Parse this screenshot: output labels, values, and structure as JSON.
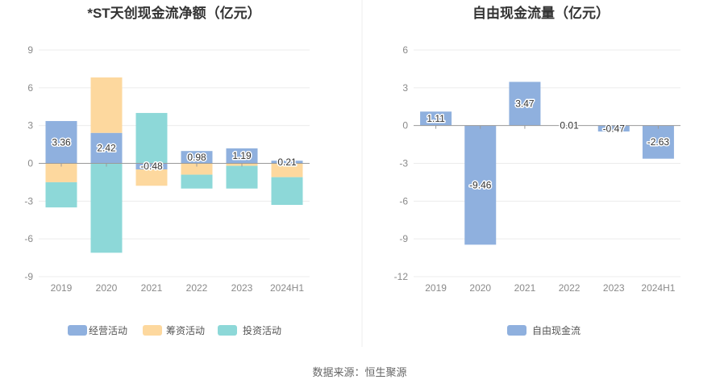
{
  "source": "数据来源：恒生聚源",
  "chart_data": [
    {
      "type": "bar",
      "stacked": true,
      "title": "*ST天创现金流净额（亿元）",
      "categories": [
        "2019",
        "2020",
        "2021",
        "2022",
        "2023",
        "2024H1"
      ],
      "ylim": [
        -9,
        9
      ],
      "yticks": [
        9,
        6,
        3,
        0,
        -3,
        -6,
        -9
      ],
      "grid": true,
      "legend_position": "bottom",
      "series": [
        {
          "name": "经营活动",
          "color": "#8fb0de",
          "values": [
            3.36,
            2.42,
            -0.48,
            0.98,
            1.19,
            0.21
          ],
          "labels": [
            "3.36",
            "2.42",
            "-0.48",
            "0.98",
            "1.19",
            "0.21"
          ]
        },
        {
          "name": "筹资活动",
          "color": "#fdd89e",
          "values": [
            -1.5,
            4.4,
            -1.3,
            -0.9,
            -0.2,
            -1.1
          ]
        },
        {
          "name": "投资活动",
          "color": "#8dd8d8",
          "values": [
            -2.0,
            -7.1,
            4.0,
            -1.1,
            -1.8,
            -2.2
          ]
        }
      ]
    },
    {
      "type": "bar",
      "title": "自由现金流量（亿元）",
      "categories": [
        "2019",
        "2020",
        "2021",
        "2022",
        "2023",
        "2024H1"
      ],
      "ylim": [
        -12,
        6
      ],
      "yticks": [
        6,
        3,
        0,
        -3,
        -6,
        -9,
        -12
      ],
      "grid": true,
      "legend_position": "bottom",
      "series": [
        {
          "name": "自由现金流",
          "color": "#8fb0de",
          "values": [
            1.11,
            -9.46,
            3.47,
            0.01,
            -0.47,
            -2.63
          ],
          "labels": [
            "1.11",
            "-9.46",
            "3.47",
            "0.01",
            "-0.47",
            "-2.63"
          ]
        }
      ]
    }
  ]
}
